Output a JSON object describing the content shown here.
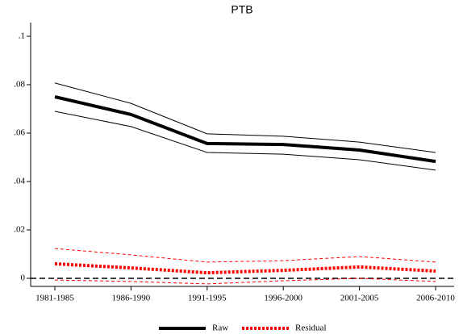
{
  "chart_data": {
    "type": "line",
    "title": "PTB",
    "categories": [
      "1981-1985",
      "1986-1990",
      "1991-1995",
      "1996-2000",
      "2001-2005",
      "2006-2010"
    ],
    "series": [
      {
        "name": "Raw",
        "color": "#000000",
        "dashed": false,
        "values": [
          0.075,
          0.0677,
          0.0557,
          0.0553,
          0.053,
          0.0483
        ],
        "upper": [
          0.0807,
          0.0723,
          0.0597,
          0.0587,
          0.0563,
          0.052
        ],
        "lower": [
          0.069,
          0.0627,
          0.052,
          0.0513,
          0.049,
          0.0447
        ]
      },
      {
        "name": "Residual",
        "color": "#ff0000",
        "dashed": true,
        "values": [
          0.006,
          0.0043,
          0.0023,
          0.0033,
          0.0047,
          0.003
        ],
        "upper": [
          0.0123,
          0.0097,
          0.0067,
          0.0073,
          0.009,
          0.0067
        ],
        "lower": [
          -0.0007,
          -0.0013,
          -0.0023,
          -0.001,
          0,
          -0.0013
        ]
      }
    ],
    "ylim": [
      -0.0033,
      0.1
    ],
    "yticks": [
      0,
      {
        "value": 0.02,
        "label": ".02"
      },
      {
        "value": 0.04,
        "label": ".04"
      },
      {
        "value": 0.06,
        "label": ".06"
      },
      {
        "value": 0.08,
        "label": ".08"
      },
      {
        "value": 0.1,
        "label": ".1"
      }
    ],
    "reference_line": 0,
    "legend": "bottom"
  }
}
